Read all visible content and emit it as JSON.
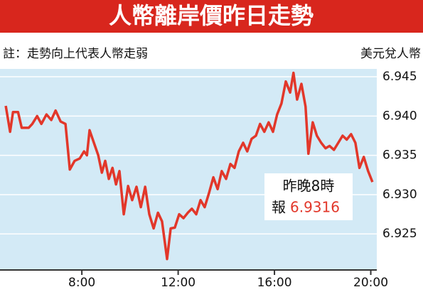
{
  "chart_data": {
    "type": "line",
    "title": "人幣離岸價昨日走勢",
    "note": "註：走勢向上代表人幣走弱",
    "y_label": "美元兌人幣",
    "x": [
      4.84,
      5.02,
      5.14,
      5.35,
      5.5,
      5.79,
      5.94,
      6.14,
      6.32,
      6.53,
      6.73,
      6.91,
      7.12,
      7.32,
      7.5,
      7.7,
      7.91,
      8.09,
      8.21,
      8.32,
      8.5,
      8.68,
      8.83,
      8.97,
      9.12,
      9.27,
      9.42,
      9.56,
      9.74,
      9.92,
      10.09,
      10.27,
      10.45,
      10.63,
      10.8,
      10.98,
      11.16,
      11.33,
      11.54,
      11.69,
      11.86,
      12.04,
      12.22,
      12.4,
      12.57,
      12.75,
      12.93,
      13.1,
      13.28,
      13.46,
      13.64,
      13.81,
      13.99,
      14.17,
      14.34,
      14.52,
      14.7,
      14.87,
      15.05,
      15.23,
      15.4,
      15.58,
      15.76,
      15.94,
      16.11,
      16.29,
      16.47,
      16.65,
      16.79,
      16.94,
      17.12,
      17.29,
      17.41,
      17.59,
      17.76,
      17.94,
      18.12,
      18.29,
      18.47,
      18.65,
      18.83,
      19.0,
      19.18,
      19.36,
      19.53,
      19.71,
      19.89,
      20.07
    ],
    "series": [
      {
        "name": "美元兌人幣",
        "color": "#e2372a",
        "values": [
          6.9413,
          6.938,
          6.9405,
          6.9405,
          6.9385,
          6.9385,
          6.939,
          6.94,
          6.939,
          6.9402,
          6.9395,
          6.9407,
          6.9393,
          6.939,
          6.9332,
          6.9343,
          6.9346,
          6.9355,
          6.935,
          6.9382,
          6.9366,
          6.935,
          6.9328,
          6.9343,
          6.932,
          6.9334,
          6.9313,
          6.933,
          6.9275,
          6.9311,
          6.9293,
          6.931,
          6.9284,
          6.931,
          6.9275,
          6.9257,
          6.9277,
          6.9266,
          6.9218,
          6.9257,
          6.9258,
          6.9275,
          6.927,
          6.9277,
          6.9282,
          6.9275,
          6.9293,
          6.9284,
          6.9302,
          6.9322,
          6.9307,
          6.933,
          6.932,
          6.9339,
          6.9334,
          6.9355,
          6.9366,
          6.9355,
          6.9371,
          6.9375,
          6.939,
          6.938,
          6.9392,
          6.938,
          6.9402,
          6.9416,
          6.9444,
          6.943,
          6.9455,
          6.9421,
          6.9441,
          6.9412,
          6.9352,
          6.9392,
          6.9375,
          6.9366,
          6.9359,
          6.9362,
          6.9357,
          6.9366,
          6.9375,
          6.937,
          6.9377,
          6.9366,
          6.9334,
          6.9348,
          6.933,
          6.9316
        ]
      }
    ],
    "xlim": [
      4.6,
      20.25
    ],
    "xticks": [
      {
        "value": 8,
        "label": "8:00"
      },
      {
        "value": 12,
        "label": "12:00"
      },
      {
        "value": 16,
        "label": "16:00"
      },
      {
        "value": 20,
        "label": "20:00"
      }
    ],
    "ylim": [
      6.9205,
      6.946
    ],
    "yticks": [
      6.925,
      {
        "value": 6.93,
        "label": "6.930"
      },
      6.935,
      {
        "value": 6.94,
        "label": "6.940"
      },
      6.945
    ],
    "grid": true,
    "annotation": {
      "line1": "昨晚8時",
      "prefix": "報",
      "value_label": "6.9316"
    }
  }
}
